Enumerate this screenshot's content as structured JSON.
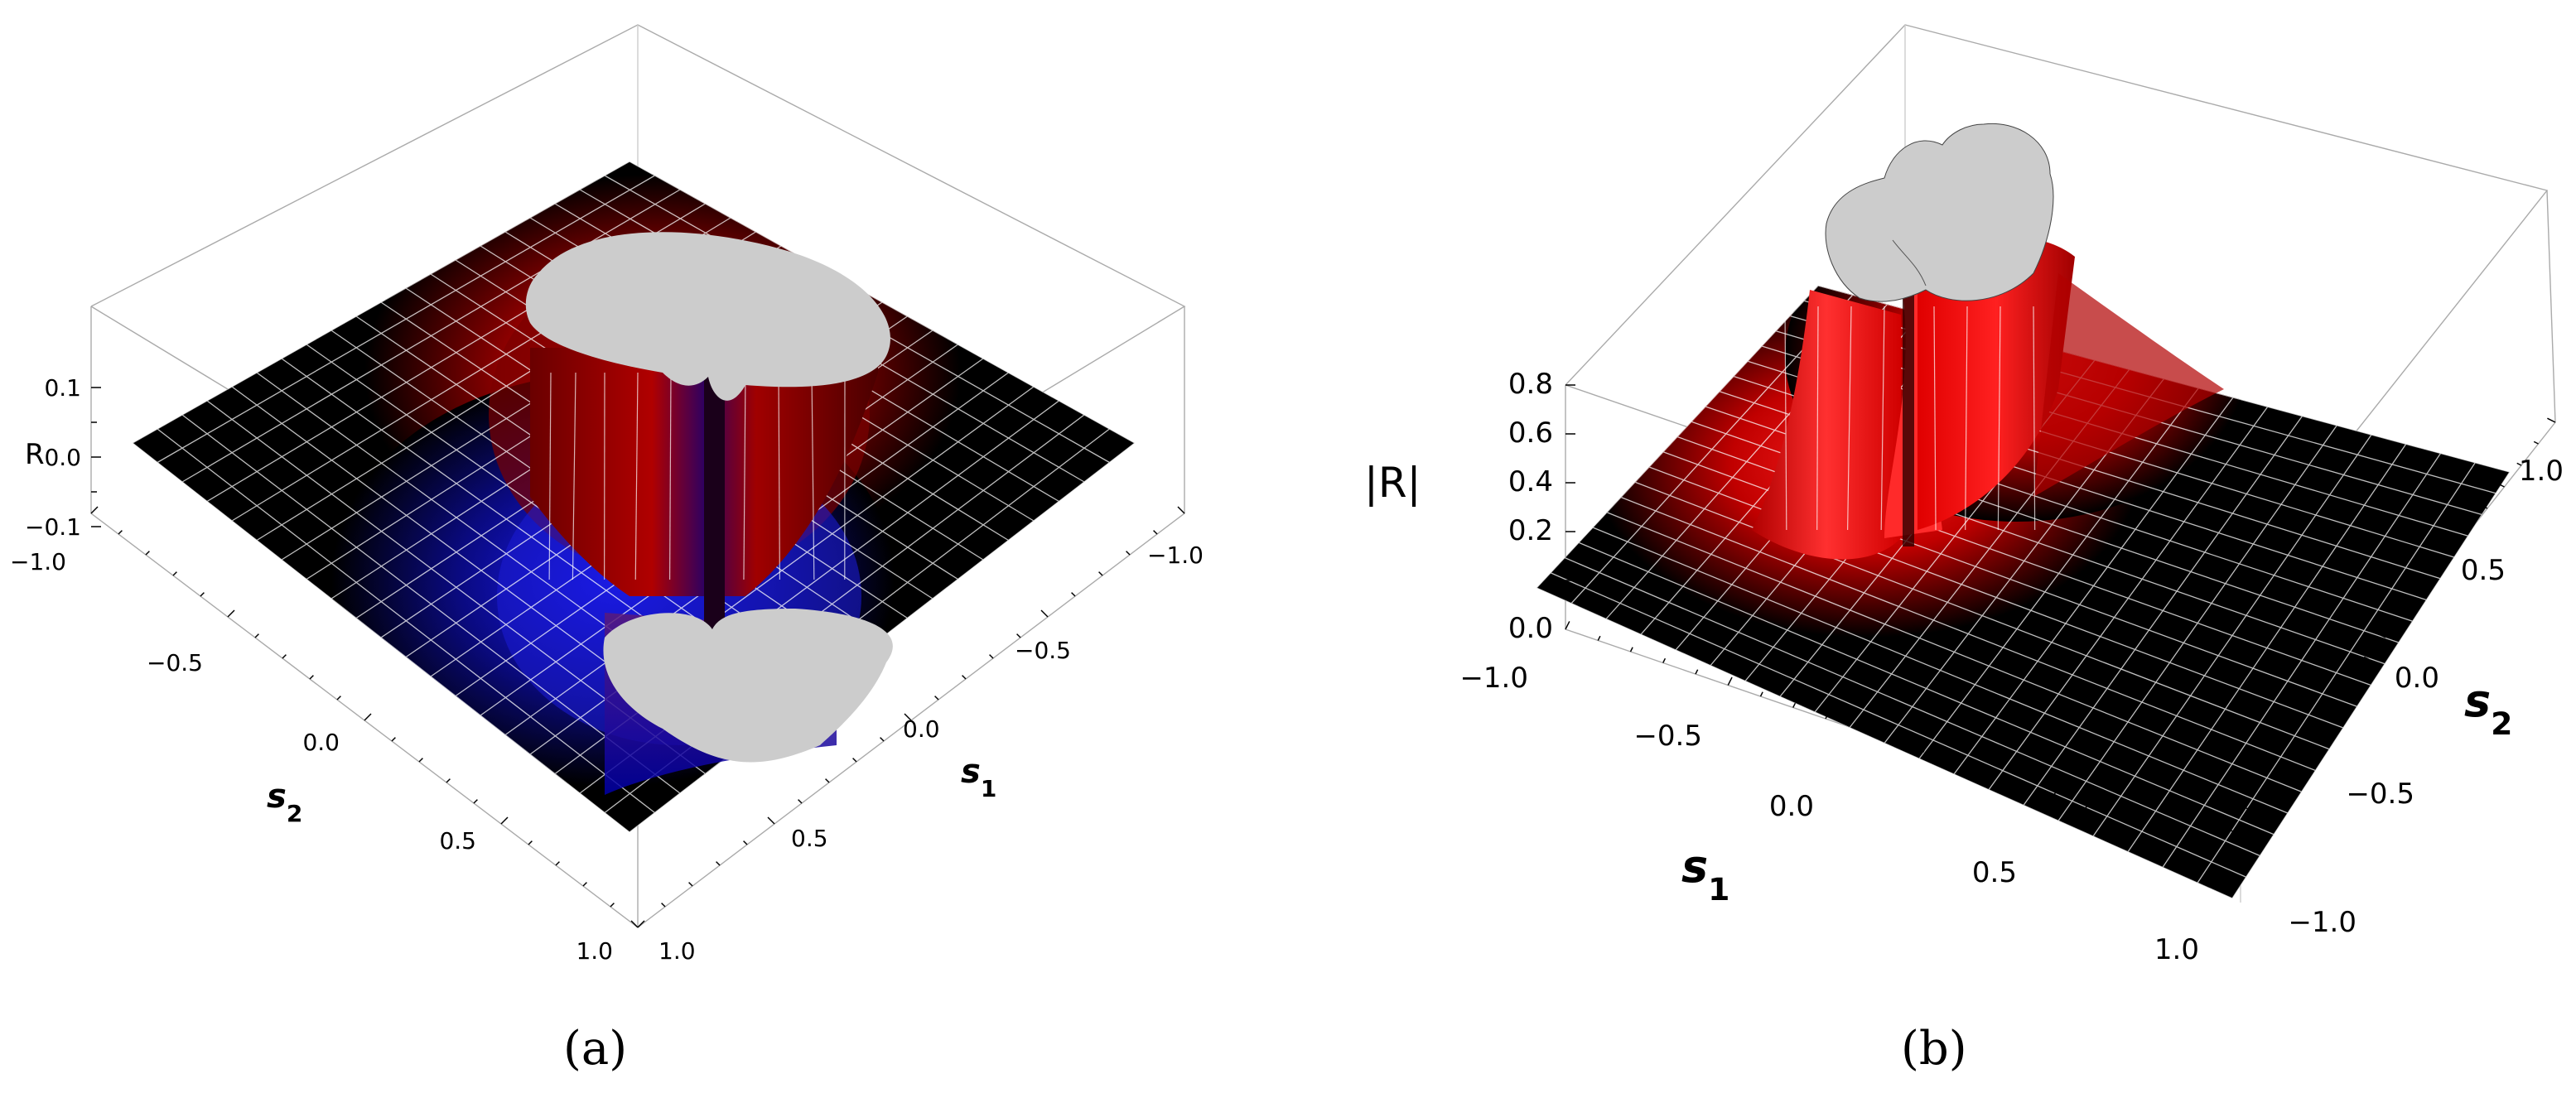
{
  "figure": {
    "caption_a": "(a)",
    "caption_b": "(b)"
  },
  "chart_data": [
    {
      "type": "surface3d",
      "panel": "a",
      "zlabel": "R",
      "xlabel": "s1",
      "ylabel": "s2",
      "x_ticks": [
        "−1.0",
        "−0.5",
        "0.0",
        "0.5",
        "1.0"
      ],
      "y_ticks": [
        "−1.0",
        "−0.5",
        "0.0",
        "0.5",
        "1.0"
      ],
      "z_ticks": [
        "0.1",
        "0.0",
        "−0.1"
      ],
      "xlim": [
        -1.0,
        1.0
      ],
      "ylim": [
        -1.0,
        1.0
      ],
      "zlim": [
        -0.15,
        0.15
      ],
      "colorscale": {
        "positive": "#ff0000",
        "zero": "#000000",
        "negative": "#0000cc"
      },
      "mesh": "white",
      "clipped_regions_fill": "#cccccc",
      "description_values": {
        "peak_sign_top": "positive",
        "peak_sign_bottom": "negative"
      }
    },
    {
      "type": "surface3d",
      "panel": "b",
      "zlabel": "|R|",
      "xlabel": "s1",
      "ylabel": "s2",
      "x_ticks": [
        "−1.0",
        "−0.5",
        "0.0",
        "0.5",
        "1.0"
      ],
      "y_ticks": [
        "−1.0",
        "−0.5",
        "0.0",
        "0.5",
        "1.0"
      ],
      "z_ticks": [
        "0.8",
        "0.6",
        "0.4",
        "0.2",
        "0.0"
      ],
      "xlim": [
        -1.0,
        1.0
      ],
      "ylim": [
        -1.0,
        1.0
      ],
      "zlim": [
        0.0,
        0.8
      ],
      "colorscale": {
        "high": "#ff0000",
        "zero": "#000000"
      },
      "mesh": "white",
      "clipped_regions_fill": "#cccccc"
    }
  ]
}
